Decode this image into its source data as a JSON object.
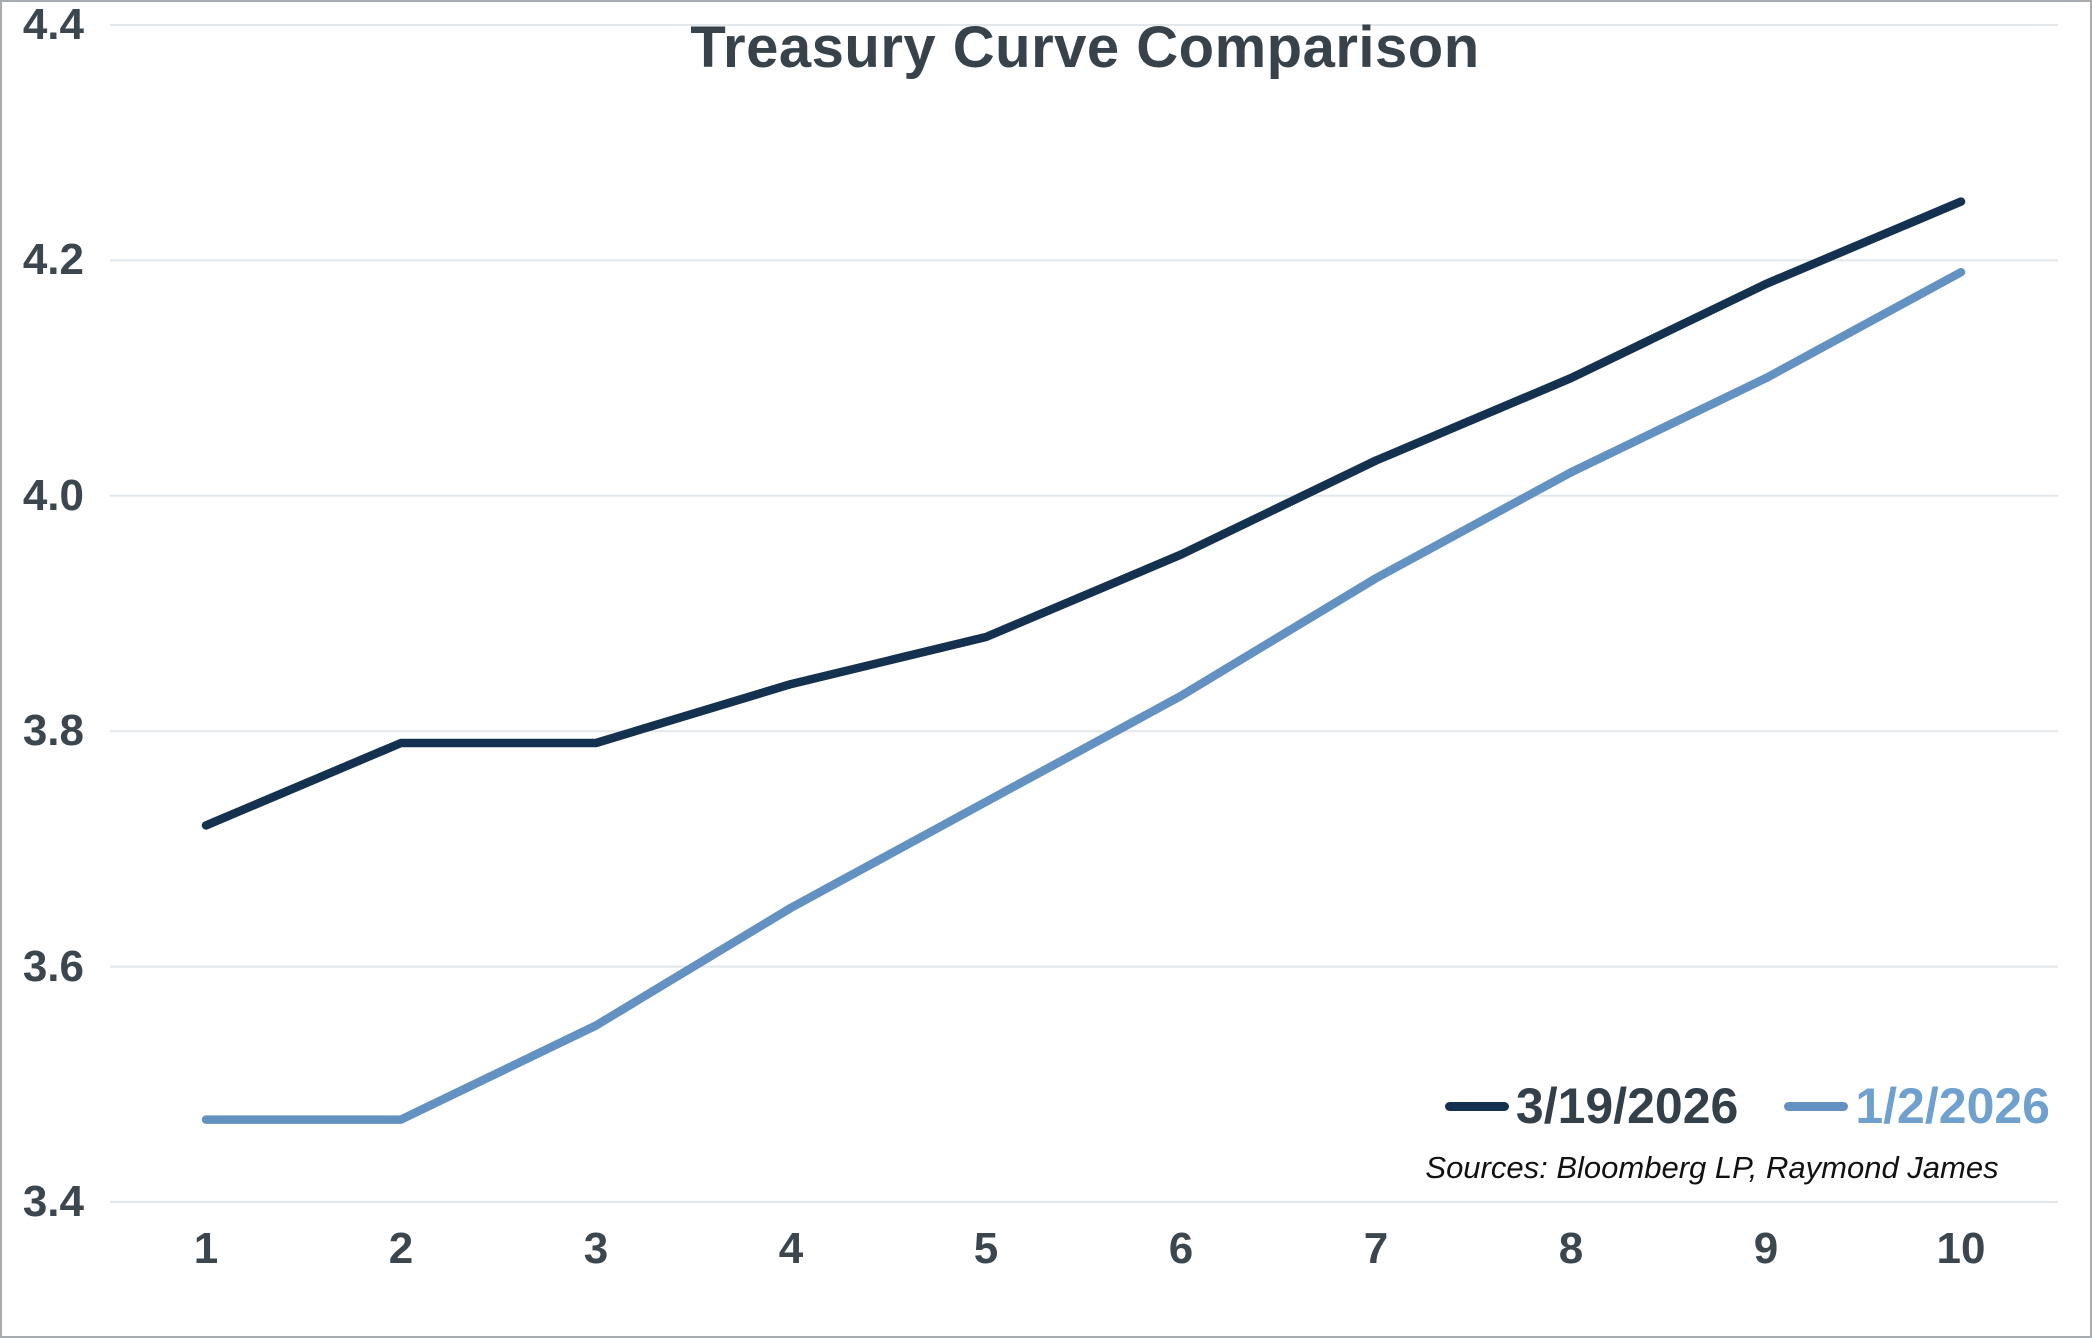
{
  "title": "Treasury Curve Comparison",
  "source_note": "Sources: Bloomberg LP, Raymond James",
  "legend": {
    "items": [
      {
        "label": "3/19/2026"
      },
      {
        "label": "1/2/2026"
      }
    ]
  },
  "colors": {
    "series_dark": "#14324f",
    "series_blue": "#6391c1",
    "legend_text_dark": "#333f49",
    "legend_text_blue": "#6fa0ce",
    "title_text": "#37424b",
    "tick_text": "#3c464e",
    "source_text": "#111111",
    "grid": "#e2e7eb",
    "border": "#a7acb0",
    "background": "#ffffff"
  },
  "chart_data": {
    "type": "line",
    "title": "Treasury Curve Comparison",
    "xlabel": "",
    "ylabel": "",
    "x": [
      1,
      2,
      3,
      4,
      5,
      6,
      7,
      8,
      9,
      10
    ],
    "x_tick_labels": [
      "1",
      "2",
      "3",
      "4",
      "5",
      "6",
      "7",
      "8",
      "9",
      "10"
    ],
    "ylim": [
      3.4,
      4.4
    ],
    "yticks": [
      3.4,
      3.6,
      3.8,
      4.0,
      4.2,
      4.4
    ],
    "ytick_labels": [
      "3.4",
      "3.6",
      "3.8",
      "4.0",
      "4.2",
      "4.4"
    ],
    "grid": "horizontal",
    "legend_position": "bottom-right",
    "series": [
      {
        "name": "3/19/2026",
        "color": "#14324f",
        "values": [
          3.72,
          3.79,
          3.79,
          3.84,
          3.88,
          3.95,
          4.03,
          4.1,
          4.18,
          4.25
        ]
      },
      {
        "name": "1/2/2026",
        "color": "#6391c1",
        "values": [
          3.47,
          3.47,
          3.55,
          3.65,
          3.74,
          3.83,
          3.93,
          4.02,
          4.1,
          4.19
        ]
      }
    ]
  }
}
